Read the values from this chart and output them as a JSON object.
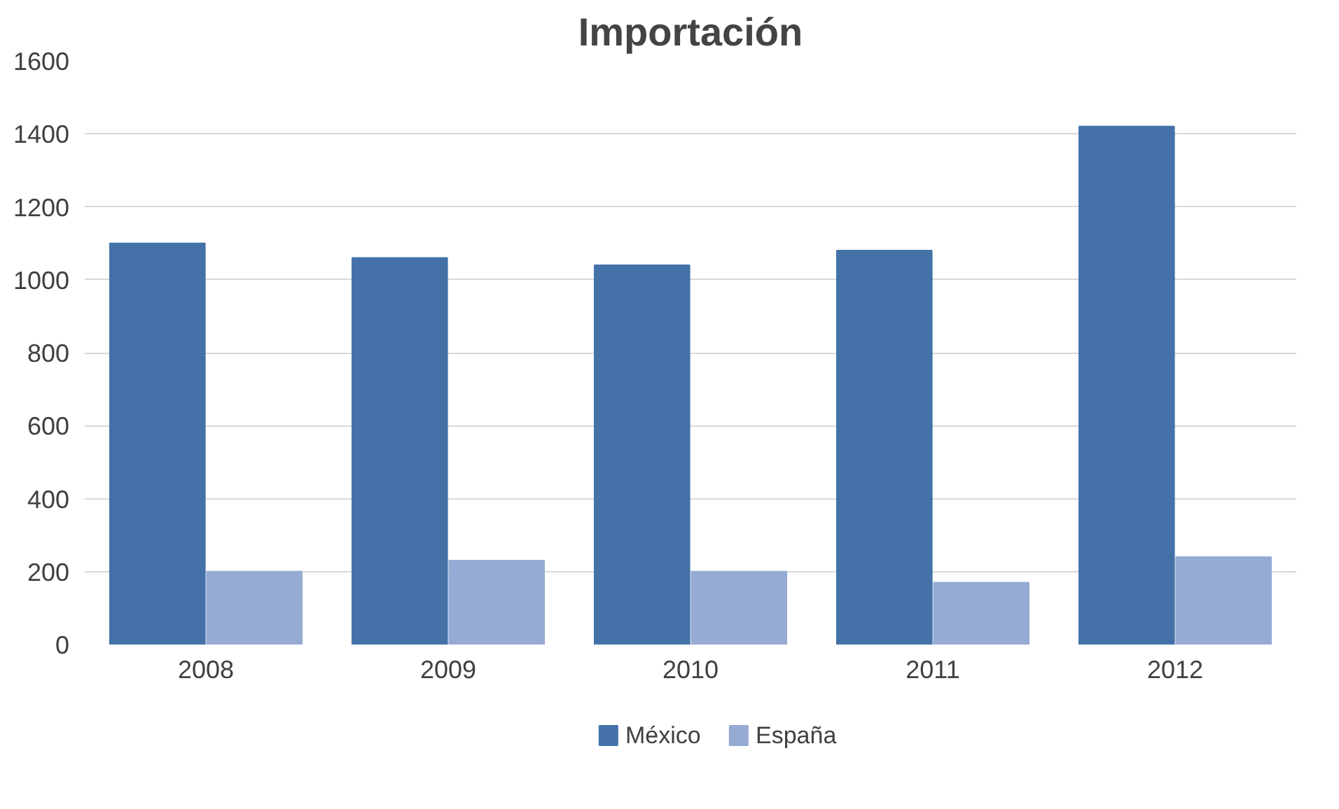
{
  "chart_data": {
    "type": "bar",
    "title": "Importación",
    "categories": [
      "2008",
      "2009",
      "2010",
      "2011",
      "2012"
    ],
    "series": [
      {
        "name": "México",
        "color": "#4472a8",
        "values": [
          1100,
          1060,
          1040,
          1080,
          1420
        ]
      },
      {
        "name": "España",
        "color": "#95abd3",
        "values": [
          200,
          230,
          200,
          170,
          240
        ]
      }
    ],
    "ylim": [
      0,
      1600
    ],
    "yticks": [
      0,
      200,
      400,
      600,
      800,
      1000,
      1200,
      1400,
      1600
    ],
    "grid": "y",
    "legend": "bottom"
  }
}
